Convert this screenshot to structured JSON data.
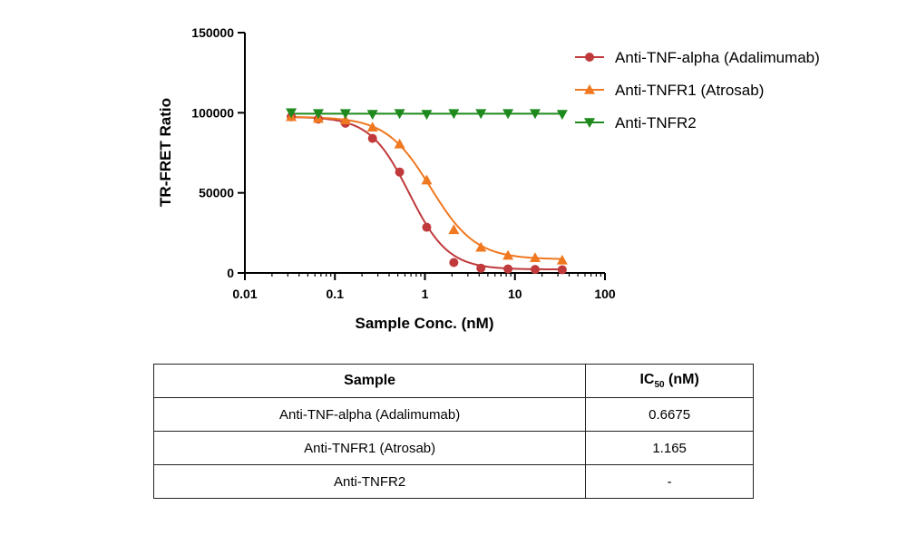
{
  "chart_data": {
    "type": "scatter",
    "xlabel": "Sample Conc. (nM)",
    "ylabel": "TR-FRET Ratio",
    "xscale": "log",
    "xlim": [
      0.01,
      100
    ],
    "ylim": [
      0,
      150000
    ],
    "xticks": [
      0.01,
      0.1,
      1,
      10,
      100
    ],
    "xtick_labels": [
      "0.01",
      "0.1",
      "1",
      "10",
      "100"
    ],
    "yticks": [
      0,
      50000,
      100000,
      150000
    ],
    "ytick_labels": [
      "0",
      "50000",
      "100000",
      "150000"
    ],
    "grid": false,
    "legend_position": "top-right",
    "x": [
      0.0327,
      0.0654,
      0.1309,
      0.2617,
      0.5234,
      1.047,
      2.094,
      4.188,
      8.375,
      16.75,
      33.5
    ],
    "series": [
      {
        "name": "Anti-TNF-alpha (Adalimumab)",
        "color": "#C0393B",
        "marker": "circle",
        "values": [
          97500,
          96000,
          93500,
          84000,
          63000,
          28500,
          6500,
          3000,
          2500,
          2200,
          2000
        ],
        "fit": {
          "top": 97500,
          "bottom": 2200,
          "ic50": 0.6675,
          "hill": 2.0
        }
      },
      {
        "name": "Anti-TNFR1 (Atrosab)",
        "color": "#F07820",
        "marker": "triangle-up",
        "values": [
          97500,
          96500,
          95500,
          91000,
          80500,
          58000,
          27000,
          16000,
          11000,
          9500,
          8000
        ],
        "fit": {
          "top": 97500,
          "bottom": 8500,
          "ic50": 1.165,
          "hill": 1.75
        }
      },
      {
        "name": "Anti-TNFR2",
        "color": "#1E8A1E",
        "marker": "triangle-down",
        "values": [
          100000,
          99500,
          99500,
          99000,
          99500,
          99000,
          99500,
          99500,
          99500,
          99500,
          99000
        ]
      }
    ]
  },
  "table": {
    "headers": {
      "sample": "Sample",
      "ic50_main": "IC",
      "ic50_sub": "50",
      "ic50_unit": " (nM)"
    },
    "rows": [
      {
        "sample": "Anti-TNF-alpha (Adalimumab)",
        "ic50": "0.6675"
      },
      {
        "sample": "Anti-TNFR1 (Atrosab)",
        "ic50": "1.165"
      },
      {
        "sample": "Anti-TNFR2",
        "ic50": "-"
      }
    ]
  }
}
